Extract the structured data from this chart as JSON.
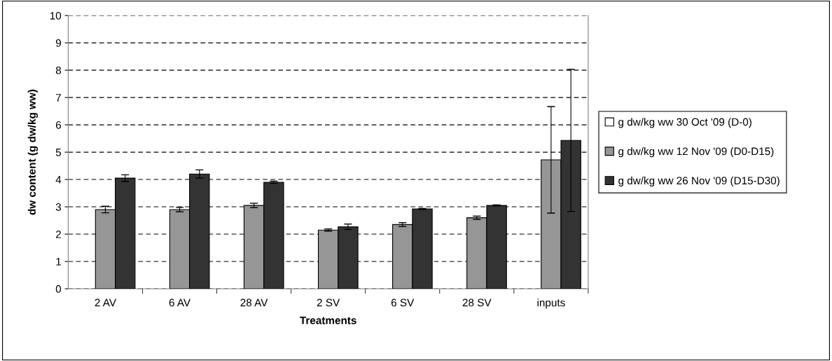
{
  "chart_data": {
    "type": "bar",
    "xlabel": "Treatments",
    "ylabel": "dw content (g dw/kg ww)",
    "categories": [
      "2 AV",
      "6 AV",
      "28 AV",
      "2 SV",
      "6 SV",
      "28 SV",
      "inputs"
    ],
    "series": [
      {
        "name": "g dw/kg ww 30 Oct '09 (D-0)",
        "color": "#ffffff",
        "values": [
          null,
          null,
          null,
          null,
          null,
          null,
          null
        ]
      },
      {
        "name": "g dw/kg ww 12 Nov '09 (D0-D15)",
        "color": "#969696",
        "values": [
          2.9,
          2.9,
          3.05,
          2.15,
          2.35,
          2.6,
          4.72
        ],
        "errors": [
          0.12,
          0.08,
          0.08,
          0.04,
          0.07,
          0.06,
          1.95
        ]
      },
      {
        "name": "g dw/kg ww 26 Nov '09 (D15-D30)",
        "color": "#333333",
        "values": [
          4.05,
          4.2,
          3.9,
          2.27,
          2.92,
          3.05,
          5.43
        ],
        "errors": [
          0.12,
          0.15,
          0.04,
          0.1,
          0.02,
          0.02,
          2.6
        ]
      }
    ],
    "ylim": [
      0,
      10
    ],
    "yticks": [
      0,
      1,
      2,
      3,
      4,
      5,
      6,
      7,
      8,
      9,
      10
    ],
    "grid": "y",
    "legend": "right"
  }
}
